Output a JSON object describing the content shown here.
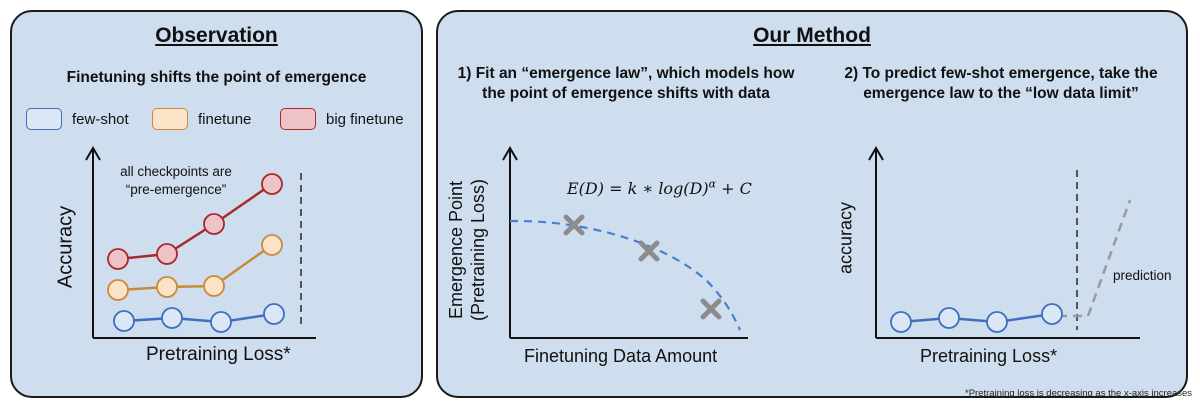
{
  "left_panel": {
    "title": "Observation",
    "subtitle": "Finetuning shifts the point of emergence",
    "legend": [
      {
        "label": "few-shot",
        "fill": "#dbe7f5",
        "stroke": "#3f6fbf"
      },
      {
        "label": "finetune",
        "fill": "#fbe3c7",
        "stroke": "#c98a3a"
      },
      {
        "label": "big finetune",
        "fill": "#eec3c7",
        "stroke": "#a8282c"
      }
    ],
    "annotation_line1": "all checkpoints are",
    "annotation_line2": "“pre-emergence”",
    "ylabel": "Accuracy",
    "xlabel": "Pretraining Loss*"
  },
  "right_panel": {
    "title": "Our Method",
    "step1_line1": "1) Fit an “emergence law”, which models how",
    "step1_line2": "the point of emergence shifts with data",
    "step2_line1": "2) To predict few-shot emergence, take the",
    "step2_line2": "emergence law to the “low data limit”",
    "formula": "E(D) = k ∗ log(D)^α + C",
    "chart1_ylabel_line1": "Emergence Point",
    "chart1_ylabel_line2": "(Pretraining Loss)",
    "chart1_xlabel": "Finetuning Data Amount",
    "chart2_ylabel": "accuracy",
    "chart2_xlabel": "Pretraining Loss*",
    "prediction_label": "prediction",
    "footnote": "*Pretraining loss is decreasing as the x-axis increases"
  },
  "colors": {
    "panel_bg": "#cfdeee",
    "few_shot": "#3f6fbf",
    "finetune": "#c98a3a",
    "big_finetune": "#a8282c",
    "curve": "#4a7fd0",
    "marker_gray": "#8c8c8c",
    "prediction_gray": "#9a9a9a"
  }
}
